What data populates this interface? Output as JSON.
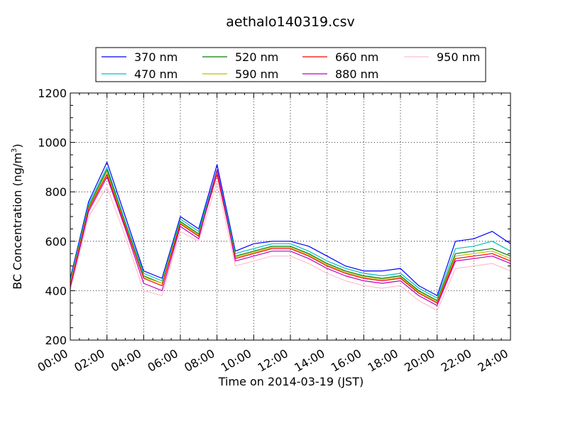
{
  "chart_data": {
    "type": "line",
    "title": "aethalo140319.csv",
    "xlabel": "Time on 2014-03-19 (JST)",
    "ylabel": "BC Concentration (ng/m",
    "ylabel_sup": "3",
    "ylabel_close": ")",
    "xlim": [
      0,
      24
    ],
    "ylim": [
      200,
      1200
    ],
    "x_unit": "hours",
    "x_ticks": [
      0,
      2,
      4,
      6,
      8,
      10,
      12,
      14,
      16,
      18,
      20,
      22,
      24
    ],
    "x_tick_labels": [
      "00:00",
      "02:00",
      "04:00",
      "06:00",
      "08:00",
      "10:00",
      "12:00",
      "14:00",
      "16:00",
      "18:00",
      "20:00",
      "22:00",
      "24:00"
    ],
    "y_ticks": [
      200,
      400,
      600,
      800,
      1000,
      1200
    ],
    "y_tick_labels": [
      "200",
      "400",
      "600",
      "800",
      "1000",
      "1200"
    ],
    "grid": true,
    "legend_position": "top",
    "x": [
      0,
      1,
      2,
      3,
      4,
      5,
      6,
      7,
      8,
      9,
      10,
      11,
      12,
      13,
      14,
      15,
      16,
      17,
      18,
      19,
      20,
      21,
      22,
      23,
      24
    ],
    "series": [
      {
        "name": "370 nm",
        "color": "#0000ff",
        "values": [
          450,
          760,
          920,
          700,
          480,
          450,
          700,
          650,
          910,
          560,
          590,
          600,
          600,
          580,
          540,
          500,
          480,
          480,
          490,
          420,
          380,
          600,
          610,
          640,
          590
        ]
      },
      {
        "name": "470 nm",
        "color": "#00bfbf",
        "values": [
          440,
          750,
          900,
          680,
          470,
          440,
          690,
          640,
          890,
          550,
          570,
          590,
          590,
          560,
          520,
          490,
          470,
          460,
          470,
          410,
          370,
          570,
          580,
          600,
          560
        ]
      },
      {
        "name": "520 nm",
        "color": "#008000",
        "values": [
          430,
          740,
          890,
          670,
          460,
          430,
          680,
          630,
          880,
          540,
          560,
          580,
          580,
          550,
          510,
          480,
          460,
          450,
          460,
          400,
          360,
          550,
          560,
          570,
          540
        ]
      },
      {
        "name": "590 nm",
        "color": "#bfbf00",
        "values": [
          430,
          735,
          880,
          665,
          455,
          430,
          675,
          625,
          875,
          535,
          555,
          575,
          575,
          545,
          505,
          475,
          455,
          445,
          455,
          395,
          355,
          540,
          550,
          560,
          530
        ]
      },
      {
        "name": "660 nm",
        "color": "#ff0000",
        "values": [
          420,
          730,
          870,
          660,
          450,
          420,
          670,
          620,
          870,
          530,
          550,
          570,
          570,
          540,
          500,
          470,
          450,
          440,
          450,
          390,
          350,
          530,
          540,
          550,
          520
        ]
      },
      {
        "name": "880 nm",
        "color": "#bf00bf",
        "values": [
          410,
          720,
          860,
          650,
          430,
          400,
          660,
          610,
          890,
          520,
          540,
          560,
          560,
          530,
          490,
          460,
          440,
          430,
          440,
          380,
          340,
          520,
          530,
          540,
          510
        ]
      },
      {
        "name": "950 nm",
        "color": "#ffc0cb",
        "values": [
          400,
          700,
          820,
          620,
          400,
          380,
          640,
          600,
          840,
          500,
          520,
          540,
          540,
          510,
          470,
          440,
          420,
          410,
          420,
          360,
          320,
          490,
          500,
          510,
          480
        ]
      }
    ]
  }
}
